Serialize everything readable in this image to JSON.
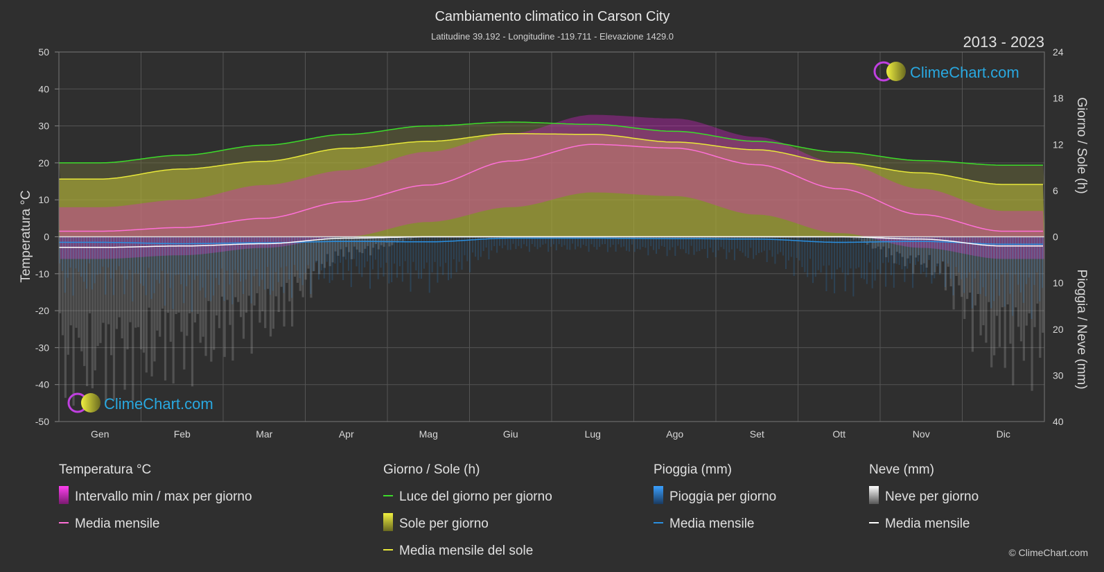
{
  "header": {
    "title": "Cambiamento climatico in Carson City",
    "subtitle": "Latitudine 39.192 - Longitudine -119.711 - Elevazione 1429.0",
    "period": "2013 - 2023"
  },
  "brand": {
    "name": "ClimeChart.com",
    "copyright": "© ClimeChart.com"
  },
  "colors": {
    "background": "#2f2f2f",
    "temp_range": "#e020d0",
    "temp_mean": "#ff70d8",
    "daylight": "#3ddc2a",
    "sunshine_fill": "#a8a83a",
    "sunshine_mean": "#e8e83a",
    "rain": "#2a8fe0",
    "rain_mean": "#2a8fe0",
    "snow": "#b0b0b0",
    "snow_mean": "#ffffff",
    "brand": "#29a8e0"
  },
  "chart_data": {
    "type": "area",
    "categories": [
      "Gen",
      "Feb",
      "Mar",
      "Apr",
      "Mag",
      "Giu",
      "Lug",
      "Ago",
      "Set",
      "Ott",
      "Nov",
      "Dic"
    ],
    "axes": {
      "left": {
        "label": "Temperatura °C",
        "range": [
          -50,
          50
        ],
        "ticks": [
          50,
          40,
          30,
          20,
          10,
          0,
          -10,
          -20,
          -30,
          -40,
          -50
        ]
      },
      "right_top": {
        "label": "Giorno / Sole (h)",
        "range": [
          0,
          24
        ],
        "ticks": [
          24,
          18,
          12,
          6,
          0
        ]
      },
      "right_bottom": {
        "label": "Pioggia / Neve (mm)",
        "range": [
          0,
          40
        ],
        "ticks": [
          10,
          20,
          30,
          40
        ]
      }
    },
    "grid": true,
    "series": [
      {
        "key": "temp_max_avg",
        "unit": "°C",
        "values": [
          8,
          10,
          14,
          18,
          23,
          28,
          33,
          32,
          27,
          20,
          13,
          7
        ]
      },
      {
        "key": "temp_min_avg",
        "unit": "°C",
        "values": [
          -6,
          -5,
          -3,
          0,
          4,
          8,
          12,
          11,
          6,
          1,
          -3,
          -6
        ]
      },
      {
        "key": "temp_mean",
        "name": "Media mensile",
        "unit": "°C",
        "values": [
          1.5,
          2.5,
          5,
          9.5,
          14,
          20.5,
          25,
          24,
          19.5,
          13,
          6,
          1.5
        ]
      },
      {
        "key": "daylight",
        "name": "Luce del giorno per giorno",
        "unit": "h",
        "values": [
          9.6,
          10.6,
          11.9,
          13.3,
          14.4,
          14.9,
          14.6,
          13.7,
          12.4,
          11.0,
          9.9,
          9.3
        ]
      },
      {
        "key": "sunshine_mean",
        "name": "Media mensile del sole",
        "unit": "h",
        "values": [
          7.5,
          8.8,
          9.8,
          11.5,
          12.4,
          13.4,
          13.3,
          12.3,
          11.3,
          9.6,
          8.3,
          6.8
        ]
      },
      {
        "key": "rain_mean",
        "name": "Media mensile",
        "unit": "mm",
        "values": [
          1.2,
          1.5,
          1.3,
          1.0,
          1.1,
          0.3,
          0.3,
          0.4,
          0.5,
          1.2,
          1.0,
          1.6
        ]
      },
      {
        "key": "snow_mean",
        "name": "Media mensile",
        "unit": "mm",
        "values": [
          2.3,
          2.0,
          1.5,
          0.3,
          0.0,
          0.0,
          0.0,
          0.0,
          0.0,
          0.0,
          0.5,
          2.0
        ]
      }
    ]
  },
  "legend": {
    "sections": [
      {
        "title": "Temperatura °C",
        "items": [
          {
            "label": "Intervallo min / max per giorno",
            "icon": "range-swatch-icon"
          },
          {
            "label": "Media mensile",
            "icon": "line-icon"
          }
        ]
      },
      {
        "title": "Giorno / Sole (h)",
        "items": [
          {
            "label": "Luce del giorno per giorno",
            "icon": "line-icon"
          },
          {
            "label": "Sole per giorno",
            "icon": "swatch-icon"
          },
          {
            "label": "Media mensile del sole",
            "icon": "line-icon"
          }
        ]
      },
      {
        "title": "Pioggia (mm)",
        "items": [
          {
            "label": "Pioggia per giorno",
            "icon": "swatch-icon"
          },
          {
            "label": "Media mensile",
            "icon": "line-icon"
          }
        ]
      },
      {
        "title": "Neve (mm)",
        "items": [
          {
            "label": "Neve per giorno",
            "icon": "swatch-icon"
          },
          {
            "label": "Media mensile",
            "icon": "line-icon"
          }
        ]
      }
    ]
  }
}
